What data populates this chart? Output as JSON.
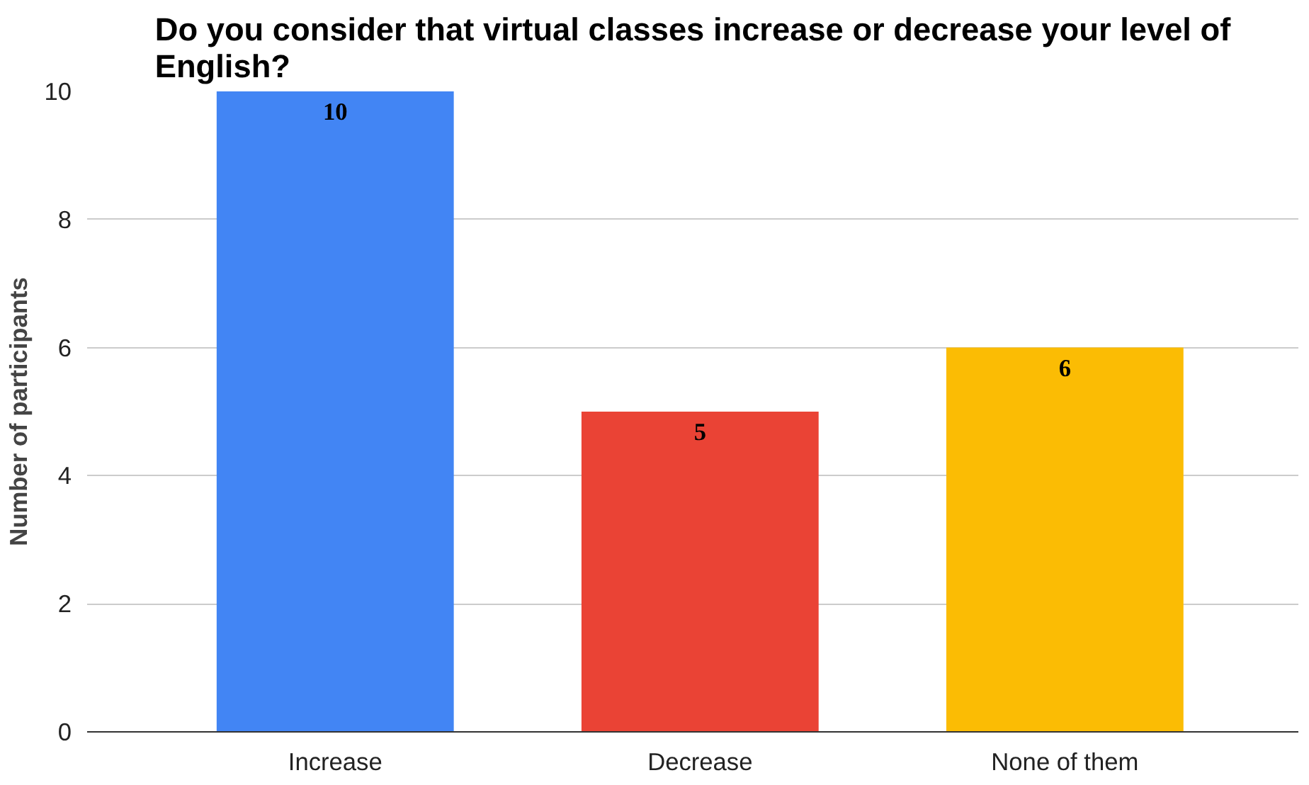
{
  "chart_data": {
    "type": "bar",
    "title": "Do you consider that virtual classes increase or decrease your level of English?",
    "ylabel": "Number of participants",
    "categories": [
      "Increase",
      "Decrease",
      "None of them"
    ],
    "values": [
      10,
      5,
      6
    ],
    "colors": [
      "#4285f4",
      "#ea4335",
      "#fbbc04"
    ],
    "ylim": [
      0,
      10
    ],
    "yticks": [
      0,
      2,
      4,
      6,
      8,
      10
    ],
    "grid": "y",
    "data_labels": true
  }
}
